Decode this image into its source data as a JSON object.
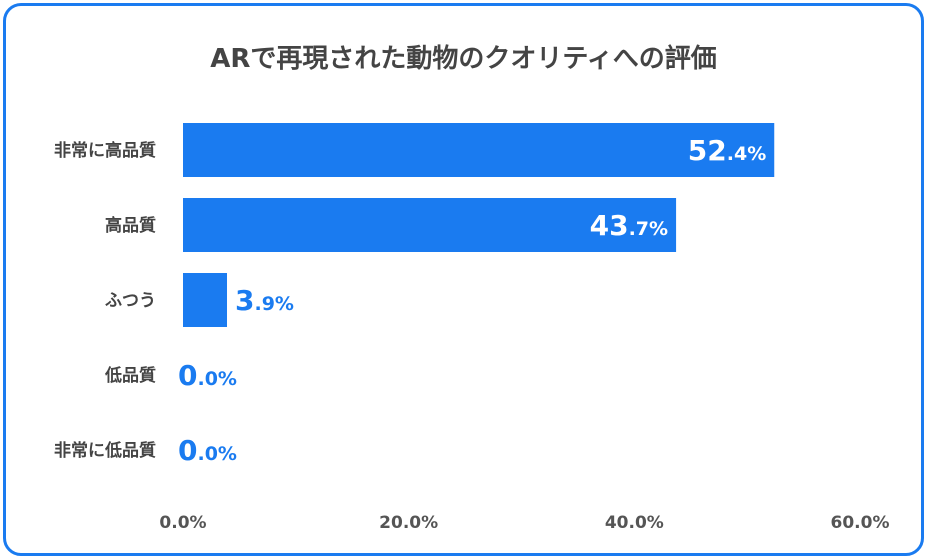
{
  "chart_data": {
    "type": "bar",
    "orientation": "horizontal",
    "title": "ARで再現された動物のクオリティへの評価",
    "categories": [
      "非常に高品質",
      "高品質",
      "ふつう",
      "低品質",
      "非常に低品質"
    ],
    "values": [
      52.4,
      43.7,
      3.9,
      0.0,
      0.0
    ],
    "value_labels": [
      {
        "int": "52",
        "dec": ".4%"
      },
      {
        "int": "43",
        "dec": ".7%"
      },
      {
        "int": "3",
        "dec": ".9%"
      },
      {
        "int": "0",
        "dec": ".0%"
      },
      {
        "int": "0",
        "dec": ".0%"
      }
    ],
    "xlim": [
      0,
      60
    ],
    "xticks": [
      "0.0%",
      "20.0%",
      "40.0%",
      "60.0%"
    ],
    "xtick_values": [
      0,
      20,
      40,
      60
    ],
    "grid": false,
    "bar_color": "#1a7bf0"
  }
}
